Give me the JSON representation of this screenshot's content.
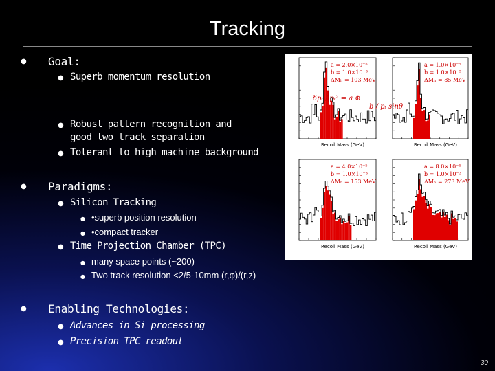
{
  "slide": {
    "title": "Tracking",
    "page_number": "30"
  },
  "goal": {
    "label": "Goal:",
    "items": [
      "Superb momentum resolution",
      "Robust pattern recognition and",
      "good two track separation",
      "Tolerant to high machine background"
    ]
  },
  "paradigms": {
    "label": "Paradigms:",
    "silicon": {
      "label": "Silicon Tracking",
      "items": [
        "•superb position resolution",
        "•compact tracker"
      ]
    },
    "tpc": {
      "label": "Time Projection Chamber (TPC)",
      "items": [
        "many space points (~200)",
        "Two track resolution <2/5-10mm (r,φ)/(r,z)"
      ]
    }
  },
  "enabling": {
    "label": "Enabling Technologies:",
    "items": [
      "Advances in Si processing",
      "Precision TPC readout"
    ]
  },
  "figure": {
    "panels": [
      {
        "a": "a = 2.0×10⁻⁵",
        "b": "b = 1.0×10⁻³",
        "dm": "ΔMₕ = 103 MeV",
        "xlabel": "Recoil Mass (GeV)"
      },
      {
        "a": "a = 1.0×10⁻⁵",
        "b": "b = 1.0×10⁻³",
        "dm": "ΔMₕ = 85 MeV",
        "xlabel": "Recoil Mass (GeV)"
      },
      {
        "a": "a = 4.0×10⁻⁵",
        "b": "b = 1.0×10⁻³",
        "dm": "ΔMₕ = 153 MeV",
        "xlabel": "Recoil Mass (GeV)"
      },
      {
        "a": "a = 8.0×10⁻⁵",
        "b": "b = 1.0×10⁻³",
        "dm": "ΔMₕ = 273 MeV",
        "xlabel": "Recoil Mass (GeV)"
      }
    ],
    "formula_lhs": "δpₜ / pₜ² = a ⊕",
    "formula_rhs": "b / pₜ sinθ",
    "colors": {
      "histogram": "#000000",
      "signal": "#e00000",
      "label_text": "#cc0000"
    }
  }
}
